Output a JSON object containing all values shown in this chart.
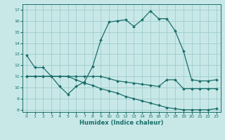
{
  "xlabel": "Humidex (Indice chaleur)",
  "xlim": [
    -0.5,
    23.5
  ],
  "ylim": [
    7.8,
    17.5
  ],
  "yticks": [
    8,
    9,
    10,
    11,
    12,
    13,
    14,
    15,
    16,
    17
  ],
  "xticks": [
    0,
    1,
    2,
    3,
    4,
    5,
    6,
    7,
    8,
    9,
    10,
    11,
    12,
    13,
    14,
    15,
    16,
    17,
    18,
    19,
    20,
    21,
    22,
    23
  ],
  "bg_color": "#c8e8e8",
  "grid_color": "#a0cccc",
  "line_color": "#1a6e6a",
  "series1_x": [
    0,
    1,
    2,
    3,
    4,
    5,
    6,
    7,
    8,
    9,
    10,
    11,
    12,
    13,
    14,
    15,
    16,
    17,
    18,
    19,
    20,
    21,
    22,
    23
  ],
  "series1_y": [
    12.9,
    11.8,
    11.8,
    11.0,
    10.1,
    9.4,
    10.1,
    10.5,
    11.9,
    14.3,
    15.9,
    16.0,
    16.1,
    15.5,
    16.1,
    16.9,
    16.2,
    16.2,
    15.1,
    13.3,
    10.7,
    10.6,
    10.6,
    10.7
  ],
  "series2_x": [
    0,
    1,
    2,
    3,
    4,
    5,
    6,
    7,
    8,
    9,
    10,
    11,
    12,
    13,
    14,
    15,
    16,
    17,
    18,
    19,
    20,
    21,
    22,
    23
  ],
  "series2_y": [
    11.0,
    11.0,
    11.0,
    11.0,
    11.0,
    11.0,
    11.0,
    11.0,
    11.0,
    11.0,
    10.8,
    10.6,
    10.5,
    10.4,
    10.3,
    10.2,
    10.1,
    10.7,
    10.7,
    9.9,
    9.9,
    9.9,
    9.9,
    9.9
  ],
  "series3_x": [
    0,
    1,
    2,
    3,
    4,
    5,
    6,
    7,
    8,
    9,
    10,
    11,
    12,
    13,
    14,
    15,
    16,
    17,
    18,
    19,
    20,
    21,
    22,
    23
  ],
  "series3_y": [
    11.0,
    11.0,
    11.0,
    11.0,
    11.0,
    11.0,
    10.7,
    10.4,
    10.2,
    9.9,
    9.7,
    9.5,
    9.2,
    9.0,
    8.8,
    8.6,
    8.4,
    8.2,
    8.1,
    8.0,
    8.0,
    8.0,
    8.0,
    8.1
  ]
}
